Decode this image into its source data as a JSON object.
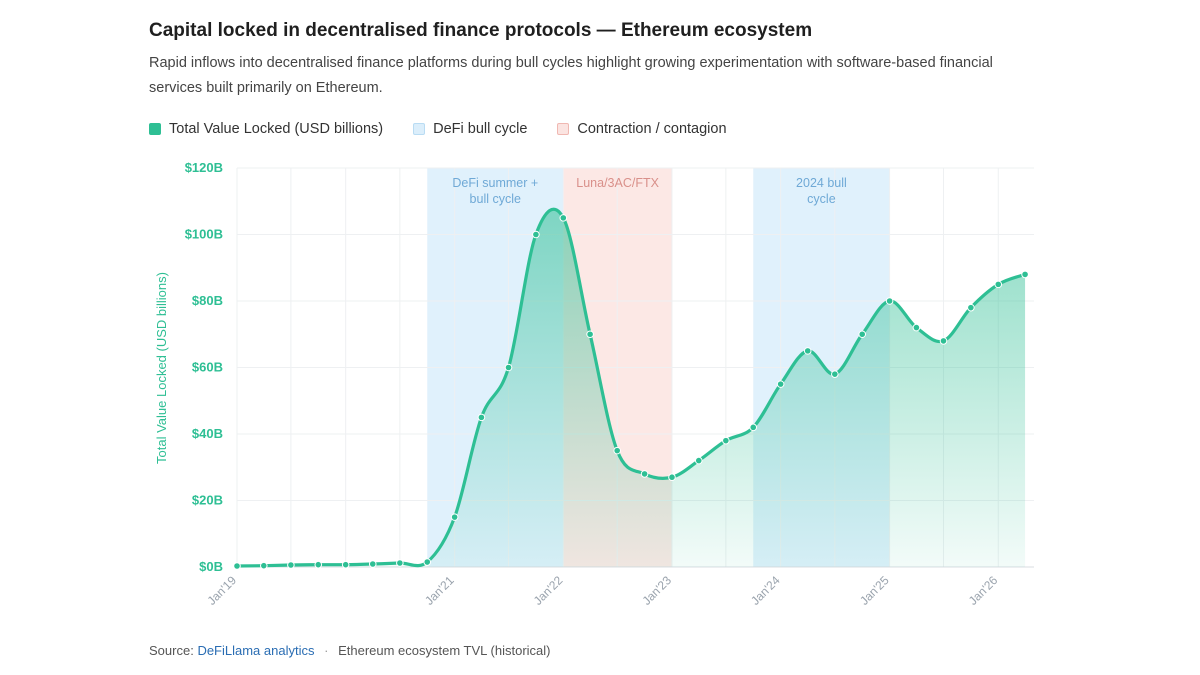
{
  "header": {
    "title": "Capital locked in decentralised finance protocols — Ethereum ecosystem",
    "subtitle": "Rapid inflows into decentralised finance platforms during bull cycles highlight growing experimentation with software-based financial services built primarily on Ethereum."
  },
  "legend": {
    "items": [
      {
        "label": "Total Value Locked (USD billions)",
        "color": "#2ebf94",
        "border": "#2ebf94"
      },
      {
        "label": "DeFi bull cycle",
        "color": "#dbeefb",
        "border": "#b9dcf3"
      },
      {
        "label": "Contraction / contagion",
        "color": "#fbe4e1",
        "border": "#f0b8b2"
      }
    ]
  },
  "footer": {
    "prefix": "Source:",
    "link": "DeFiLlama analytics",
    "separator": "·",
    "note": "Ethereum ecosystem TVL (historical)"
  },
  "colors": {
    "line": "#2ebf94",
    "fill_top": "#2ebf94",
    "bull": "#dbeefb",
    "contraction": "#fbe4e1",
    "bull_text": "#6fa9d6",
    "contraction_text": "#d9908a",
    "axis_text": "#2ebf94",
    "grid": "#eef0f2"
  },
  "chart_data": {
    "type": "area",
    "title": "",
    "ylabel": "Total Value Locked (USD billions)",
    "xlabel": "",
    "ylim": [
      0,
      120
    ],
    "xlim": [
      "2019-01-01",
      "2026-05-01"
    ],
    "grid": true,
    "legend_position": "top-left",
    "y_ticks": [
      {
        "value": 0,
        "label": "$0B"
      },
      {
        "value": 20,
        "label": "$20B"
      },
      {
        "value": 40,
        "label": "$40B"
      },
      {
        "value": 60,
        "label": "$60B"
      },
      {
        "value": 80,
        "label": "$80B"
      },
      {
        "value": 100,
        "label": "$100B"
      },
      {
        "value": 120,
        "label": "$120B"
      }
    ],
    "x_ticks": [
      {
        "date": "2019-01-01",
        "label": "Jan'19"
      },
      {
        "date": "2021-01-01",
        "label": "Jan'21"
      },
      {
        "date": "2022-01-01",
        "label": "Jan'22"
      },
      {
        "date": "2023-01-01",
        "label": "Jan'23"
      },
      {
        "date": "2024-01-01",
        "label": "Jan'24"
      },
      {
        "date": "2025-01-01",
        "label": "Jan'25"
      },
      {
        "date": "2026-01-01",
        "label": "Jan'26"
      }
    ],
    "series": [
      {
        "name": "Total Value Locked (USD billions)",
        "points": [
          {
            "x": "2019-01-01",
            "y": 0.3
          },
          {
            "x": "2019-04-01",
            "y": 0.4
          },
          {
            "x": "2019-07-01",
            "y": 0.6
          },
          {
            "x": "2019-10-01",
            "y": 0.7
          },
          {
            "x": "2020-01-01",
            "y": 0.7
          },
          {
            "x": "2020-04-01",
            "y": 0.9
          },
          {
            "x": "2020-07-01",
            "y": 1.2
          },
          {
            "x": "2020-10-01",
            "y": 1.5
          },
          {
            "x": "2021-01-01",
            "y": 15
          },
          {
            "x": "2021-04-01",
            "y": 45
          },
          {
            "x": "2021-07-01",
            "y": 60
          },
          {
            "x": "2021-10-01",
            "y": 100
          },
          {
            "x": "2022-01-01",
            "y": 105
          },
          {
            "x": "2022-04-01",
            "y": 70
          },
          {
            "x": "2022-07-01",
            "y": 35
          },
          {
            "x": "2022-10-01",
            "y": 28
          },
          {
            "x": "2023-01-01",
            "y": 27
          },
          {
            "x": "2023-04-01",
            "y": 32
          },
          {
            "x": "2023-07-01",
            "y": 38
          },
          {
            "x": "2023-10-01",
            "y": 42
          },
          {
            "x": "2024-01-01",
            "y": 55
          },
          {
            "x": "2024-04-01",
            "y": 65
          },
          {
            "x": "2024-07-01",
            "y": 58
          },
          {
            "x": "2024-10-01",
            "y": 70
          },
          {
            "x": "2025-01-01",
            "y": 80
          },
          {
            "x": "2025-04-01",
            "y": 72
          },
          {
            "x": "2025-07-01",
            "y": 68
          },
          {
            "x": "2025-10-01",
            "y": 78
          },
          {
            "x": "2026-01-01",
            "y": 85
          },
          {
            "x": "2026-04-01",
            "y": 88
          }
        ]
      }
    ],
    "bands": [
      {
        "type": "bull",
        "start": "2020-10-01",
        "end": "2022-01-01",
        "label_lines": [
          "DeFi summer +",
          "bull cycle"
        ]
      },
      {
        "type": "contraction",
        "start": "2022-01-01",
        "end": "2023-01-01",
        "label_lines": [
          "Luna/3AC/FTX"
        ]
      },
      {
        "type": "bull",
        "start": "2023-10-01",
        "end": "2025-01-01",
        "label_lines": [
          "2024 bull",
          "cycle"
        ]
      }
    ]
  }
}
